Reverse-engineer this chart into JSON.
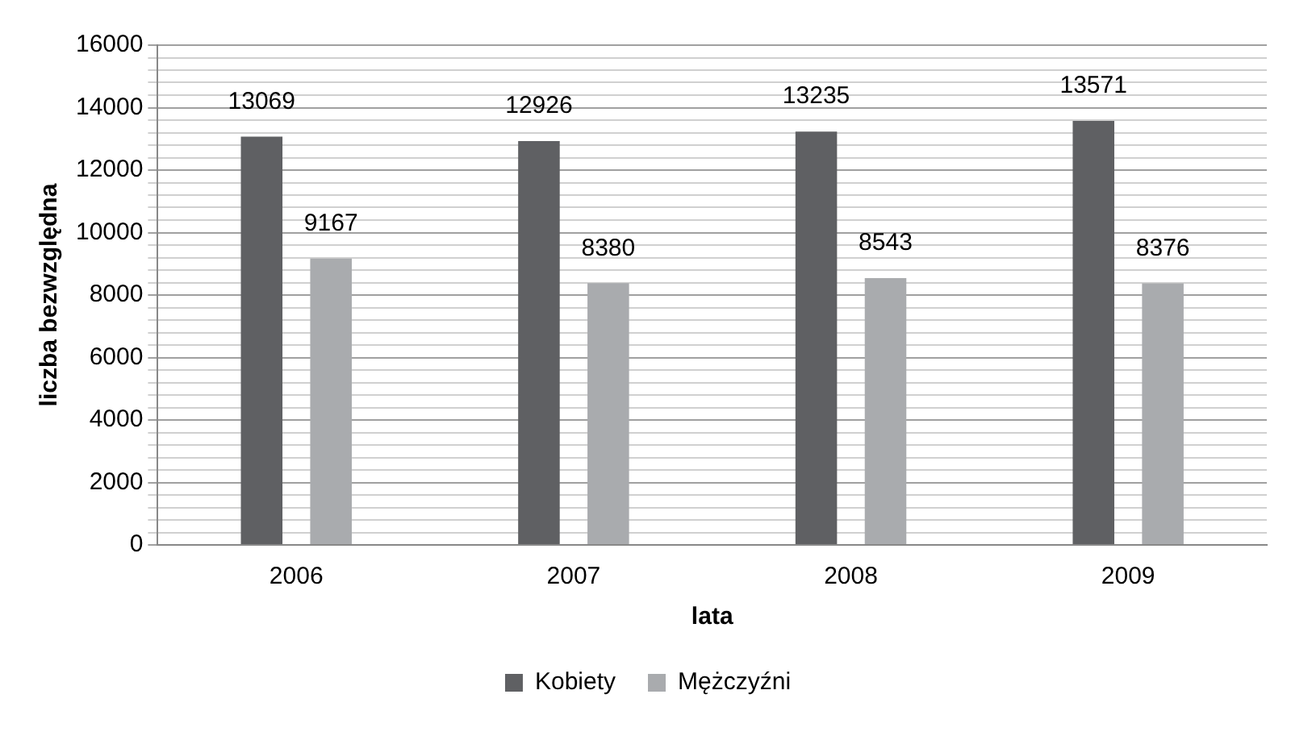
{
  "chart_data": {
    "type": "bar",
    "xlabel": "lata",
    "ylabel": "liczba bezwzględna",
    "categories": [
      "2006",
      "2007",
      "2008",
      "2009"
    ],
    "series": [
      {
        "name": "Kobiety",
        "color": "#5f6063",
        "values": [
          13069,
          12926,
          13235,
          13571
        ]
      },
      {
        "name": "Mężczyźni",
        "color": "#a9abae",
        "values": [
          9167,
          8380,
          8543,
          8376
        ]
      }
    ],
    "ylim": [
      0,
      16000
    ],
    "yticks": [
      0,
      {
        "value": 400,
        "label": null
      },
      {
        "value": 800,
        "label": null
      },
      {
        "value": 1200,
        "label": null
      },
      {
        "value": 1600,
        "label": null
      },
      2000,
      {
        "value": 2400,
        "label": null
      },
      {
        "value": 2800,
        "label": null
      },
      {
        "value": 3200,
        "label": null
      },
      {
        "value": 3600,
        "label": null
      },
      4000,
      {
        "value": 4400,
        "label": null
      },
      {
        "value": 4800,
        "label": null
      },
      {
        "value": 5200,
        "label": null
      },
      {
        "value": 5600,
        "label": null
      },
      6000,
      {
        "value": 6400,
        "label": null
      },
      {
        "value": 6800,
        "label": null
      },
      {
        "value": 7200,
        "label": null
      },
      {
        "value": 7600,
        "label": null
      },
      8000,
      {
        "value": 8400,
        "label": null
      },
      {
        "value": 8800,
        "label": null
      },
      {
        "value": 9200,
        "label": null
      },
      {
        "value": 9600,
        "label": null
      },
      10000,
      {
        "value": 10400,
        "label": null
      },
      {
        "value": 10800,
        "label": null
      },
      {
        "value": 11200,
        "label": null
      },
      {
        "value": 11600,
        "label": null
      },
      12000,
      {
        "value": 12400,
        "label": null
      },
      {
        "value": 12800,
        "label": null
      },
      {
        "value": 13200,
        "label": null
      },
      {
        "value": 13600,
        "label": null
      },
      14000,
      {
        "value": 14400,
        "label": null
      },
      {
        "value": 14800,
        "label": null
      },
      {
        "value": 15200,
        "label": null
      },
      {
        "value": 15600,
        "label": null
      },
      16000
    ],
    "grid": "y",
    "legend": "bottom",
    "data_labels": true
  }
}
